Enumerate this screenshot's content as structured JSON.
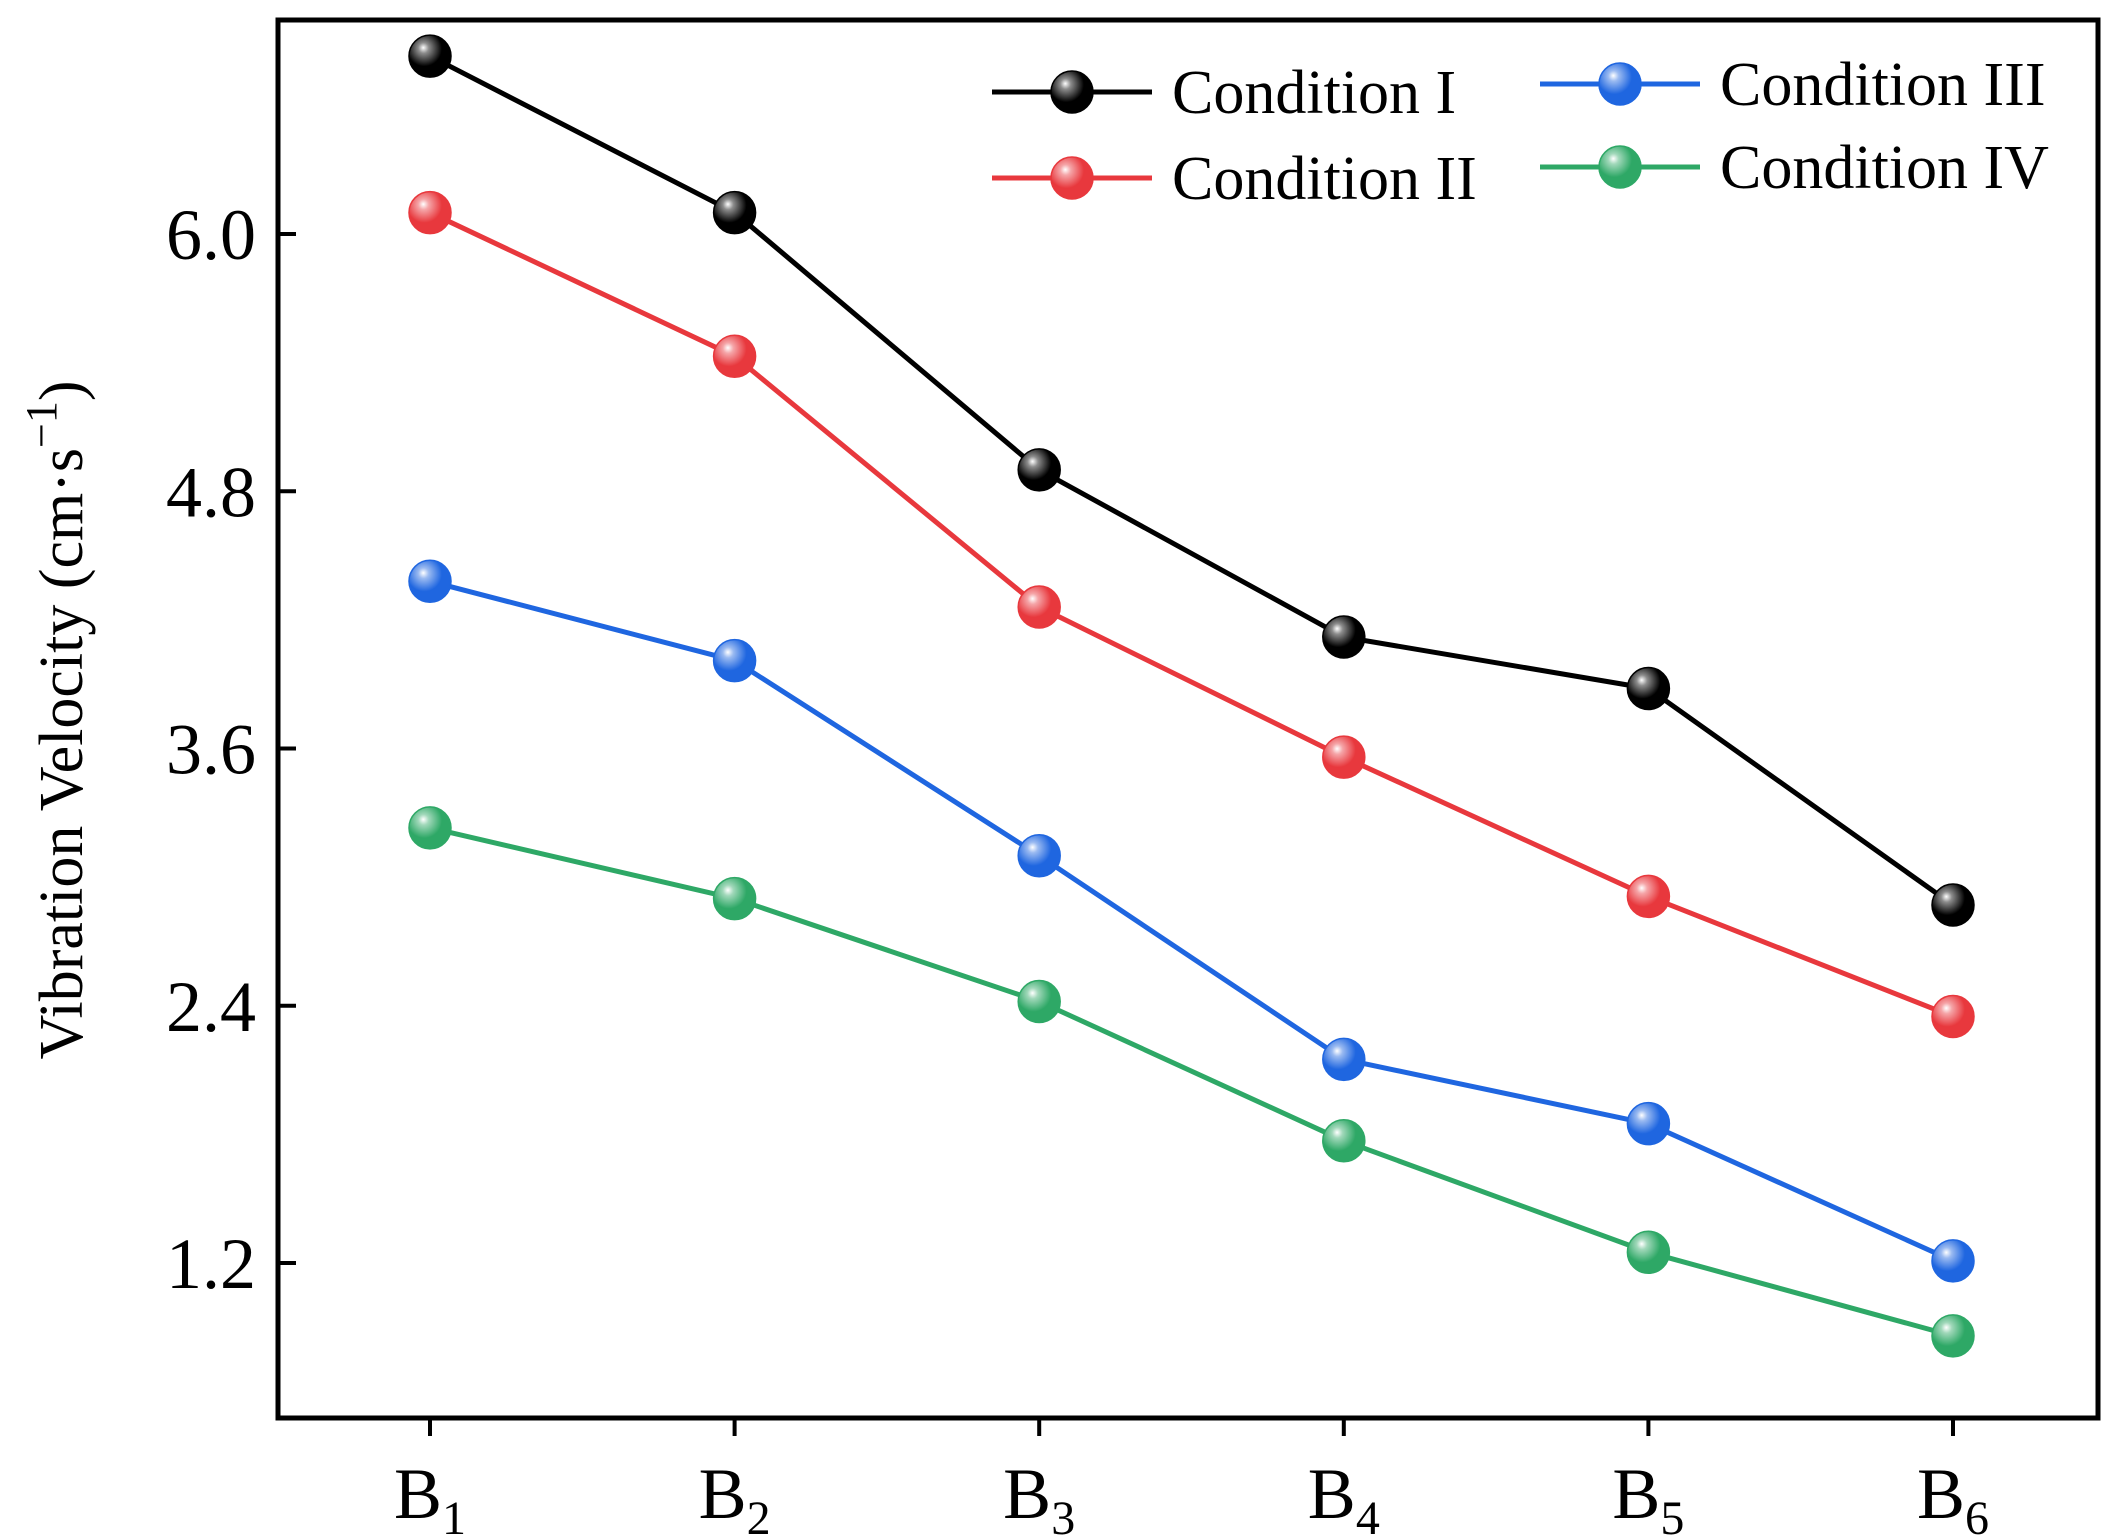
{
  "chart_data": {
    "type": "line",
    "title": "",
    "xlabel": "",
    "ylabel": {
      "main": "Vibration Velocity (cm·s",
      "superscript": "−1",
      "close": ")"
    },
    "categories": [
      {
        "base": "B",
        "sub": "1"
      },
      {
        "base": "B",
        "sub": "2"
      },
      {
        "base": "B",
        "sub": "3"
      },
      {
        "base": "B",
        "sub": "4"
      },
      {
        "base": "B",
        "sub": "5"
      },
      {
        "base": "B",
        "sub": "6"
      }
    ],
    "ylim": [
      0.5,
      7.0
    ],
    "yticks": [
      1.2,
      2.4,
      3.6,
      4.8,
      6.0
    ],
    "ytick_labels": [
      "1.2",
      "2.4",
      "3.6",
      "4.8",
      "6.0"
    ],
    "grid": false,
    "legend_position": "top-right",
    "series": [
      {
        "name": "Condition I",
        "color": "#000000",
        "values": [
          6.83,
          6.1,
          4.9,
          4.12,
          3.88,
          2.87
        ]
      },
      {
        "name": "Condition II",
        "color": "#e8383d",
        "values": [
          6.1,
          5.43,
          4.26,
          3.56,
          2.91,
          2.35
        ]
      },
      {
        "name": "Condition III",
        "color": "#1f66e0",
        "values": [
          4.38,
          4.01,
          3.1,
          2.15,
          1.85,
          1.21
        ]
      },
      {
        "name": "Condition IV",
        "color": "#2ea866",
        "values": [
          3.23,
          2.9,
          2.42,
          1.77,
          1.25,
          0.86
        ]
      }
    ]
  }
}
